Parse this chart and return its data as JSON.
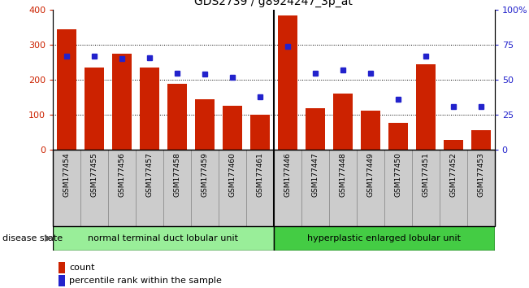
{
  "title": "GDS2739 / g8924247_3p_at",
  "samples": [
    "GSM177454",
    "GSM177455",
    "GSM177456",
    "GSM177457",
    "GSM177458",
    "GSM177459",
    "GSM177460",
    "GSM177461",
    "GSM177446",
    "GSM177447",
    "GSM177448",
    "GSM177449",
    "GSM177450",
    "GSM177451",
    "GSM177452",
    "GSM177453"
  ],
  "counts": [
    345,
    235,
    275,
    235,
    190,
    145,
    125,
    100,
    385,
    120,
    160,
    112,
    78,
    245,
    28,
    55
  ],
  "percentiles": [
    67,
    67,
    65,
    66,
    55,
    54,
    52,
    38,
    74,
    55,
    57,
    55,
    36,
    67,
    31,
    31
  ],
  "bar_color": "#cc2200",
  "dot_color": "#2222cc",
  "group1_label": "normal terminal duct lobular unit",
  "group2_label": "hyperplastic enlarged lobular unit",
  "group1_color": "#99ee99",
  "group2_color": "#44cc44",
  "group1_count": 8,
  "group2_count": 8,
  "disease_state_label": "disease state",
  "legend_count": "count",
  "legend_percentile": "percentile rank within the sample",
  "ylim_left": [
    0,
    400
  ],
  "ylim_right": [
    0,
    100
  ],
  "yticks_left": [
    0,
    100,
    200,
    300,
    400
  ],
  "yticks_right": [
    0,
    25,
    50,
    75,
    100
  ],
  "ytick_labels_right": [
    "0",
    "25",
    "50",
    "75",
    "100%"
  ],
  "grid_values": [
    100,
    200,
    300
  ],
  "tick_bg_color": "#cccccc",
  "tick_border_color": "#888888"
}
